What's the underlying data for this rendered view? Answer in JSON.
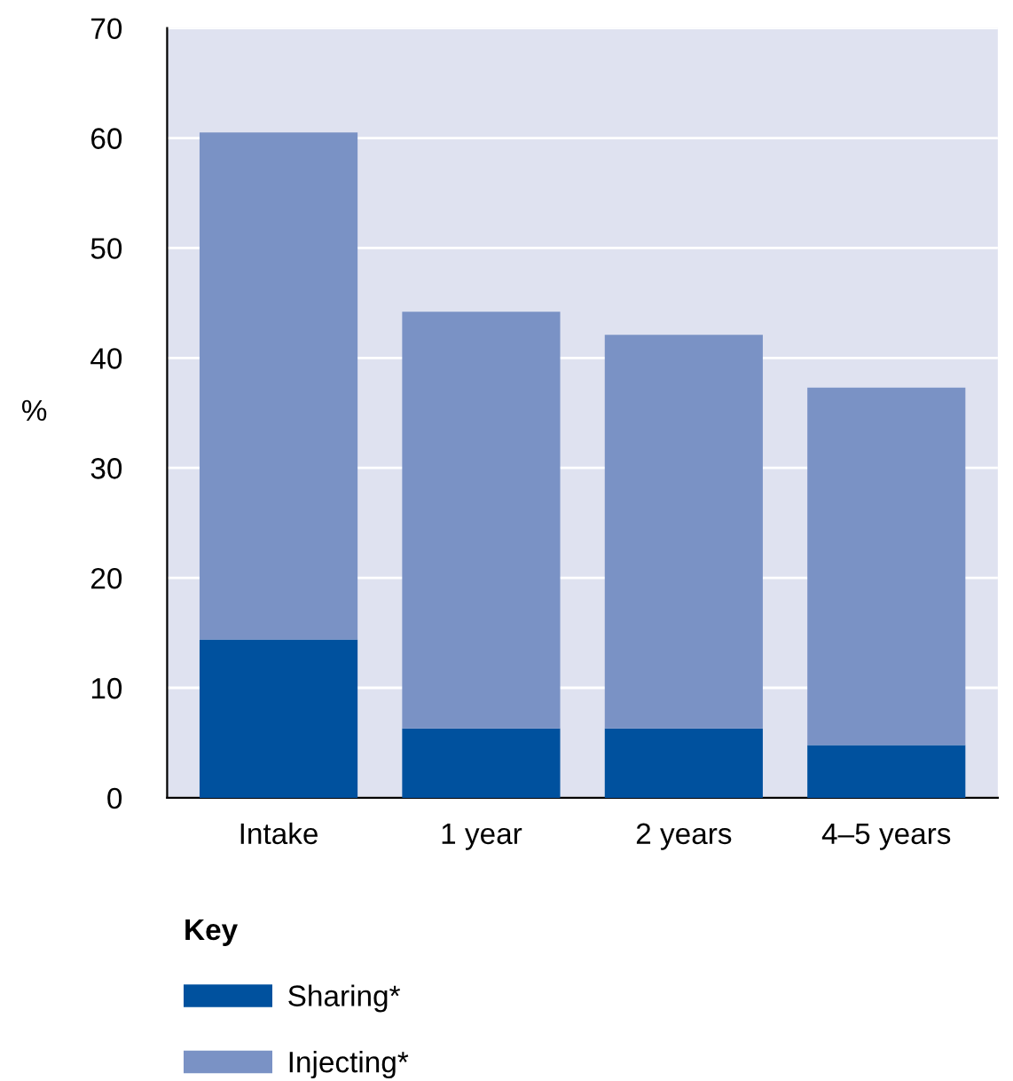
{
  "chart_data": {
    "type": "bar",
    "stacked": true,
    "ylabel": "%",
    "legend_title": "Key",
    "legend": "bottom",
    "grid": "y",
    "categories": [
      "Intake",
      "1 year",
      "2 years",
      "4–5 years"
    ],
    "series": [
      {
        "name": "Sharing*",
        "color": "#00519e",
        "values": [
          14.4,
          6.3,
          6.3,
          4.8
        ]
      },
      {
        "name": "Injecting*",
        "color": "#7a92c5",
        "values": [
          46.1,
          37.9,
          35.8,
          32.5
        ]
      }
    ],
    "ylim": [
      0,
      70
    ],
    "yticks": [
      0,
      10,
      20,
      30,
      40,
      50,
      60,
      70
    ]
  }
}
